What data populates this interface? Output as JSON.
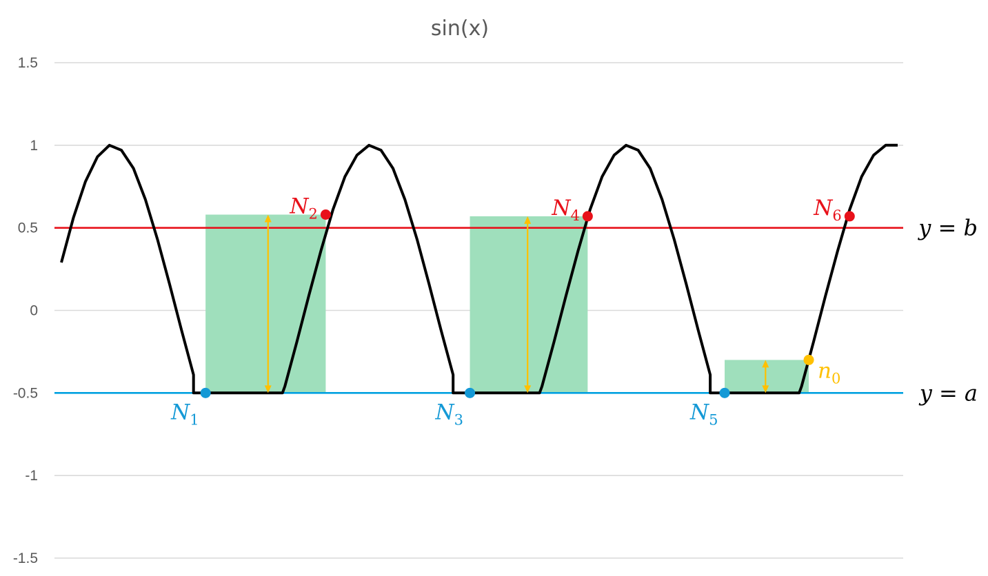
{
  "chart_data": {
    "type": "line",
    "title": "sin(x)",
    "xlabel": "",
    "ylabel": "",
    "ylim": [
      -1.5,
      1.5
    ],
    "y_ticks": [
      1.5,
      1,
      0.5,
      0,
      -0.5,
      -1,
      -1.5
    ],
    "y_tick_labels": [
      "1.5",
      "1",
      "0.5",
      "0",
      "-0.5",
      "-1",
      "-1.5"
    ],
    "grid": true,
    "legend": "none",
    "x_range": [
      0,
      18.35
    ],
    "series": [
      {
        "color": "#000000",
        "points": [
          [
            0.0,
            0.29
          ],
          [
            0.25,
            0.56
          ],
          [
            0.5,
            0.78
          ],
          [
            0.75,
            0.93
          ],
          [
            1.0,
            1.0
          ],
          [
            1.25,
            0.97
          ],
          [
            1.5,
            0.86
          ],
          [
            1.75,
            0.67
          ],
          [
            2.0,
            0.43
          ],
          [
            2.25,
            0.16
          ],
          [
            2.5,
            -0.12
          ],
          [
            2.75,
            -0.39
          ],
          [
            2.75,
            -0.5
          ],
          [
            4.6,
            -0.5
          ],
          [
            4.65,
            -0.46
          ],
          [
            4.9,
            -0.19
          ],
          [
            5.15,
            0.09
          ],
          [
            5.4,
            0.36
          ],
          [
            5.65,
            0.61
          ],
          [
            5.9,
            0.81
          ],
          [
            6.15,
            0.94
          ],
          [
            6.4,
            1.0
          ],
          [
            6.65,
            0.97
          ],
          [
            6.9,
            0.86
          ],
          [
            7.15,
            0.67
          ],
          [
            7.4,
            0.43
          ],
          [
            7.65,
            0.16
          ],
          [
            7.9,
            -0.12
          ],
          [
            8.15,
            -0.39
          ],
          [
            8.15,
            -0.5
          ],
          [
            9.95,
            -0.5
          ],
          [
            10.0,
            -0.46
          ],
          [
            10.25,
            -0.19
          ],
          [
            10.5,
            0.09
          ],
          [
            10.75,
            0.36
          ],
          [
            11.0,
            0.61
          ],
          [
            11.25,
            0.81
          ],
          [
            11.5,
            0.94
          ],
          [
            11.75,
            1.0
          ],
          [
            12.0,
            0.97
          ],
          [
            12.25,
            0.86
          ],
          [
            12.5,
            0.67
          ],
          [
            12.75,
            0.43
          ],
          [
            13.0,
            0.16
          ],
          [
            13.25,
            -0.12
          ],
          [
            13.5,
            -0.39
          ],
          [
            13.5,
            -0.5
          ],
          [
            15.35,
            -0.5
          ],
          [
            15.4,
            -0.46
          ],
          [
            15.65,
            -0.19
          ],
          [
            15.9,
            0.09
          ],
          [
            16.15,
            0.36
          ],
          [
            16.4,
            0.61
          ],
          [
            16.65,
            0.81
          ],
          [
            16.9,
            0.94
          ],
          [
            17.15,
            1.0
          ],
          [
            17.4,
            1.0
          ]
        ]
      }
    ],
    "reference_lines": [
      {
        "y": 0.5,
        "color": "#e8111a",
        "label": "y = b"
      },
      {
        "y": -0.5,
        "color": "#00a0e0",
        "label": "y = a"
      }
    ],
    "shaded_regions": [
      {
        "x0": 3.0,
        "x1": 5.5,
        "y0": -0.5,
        "y1": 0.58,
        "color": "#9fdfbc"
      },
      {
        "x0": 8.5,
        "x1": 10.95,
        "y0": -0.5,
        "y1": 0.57,
        "color": "#9fdfbc"
      },
      {
        "x0": 13.8,
        "x1": 15.55,
        "y0": -0.5,
        "y1": -0.3,
        "color": "#9fdfbc"
      }
    ],
    "double_arrows": [
      {
        "x": 4.3,
        "y0": -0.5,
        "y1": 0.58,
        "color": "#ffc000"
      },
      {
        "x": 9.7,
        "y0": -0.5,
        "y1": 0.57,
        "color": "#ffc000"
      },
      {
        "x": 14.65,
        "y0": -0.5,
        "y1": -0.3,
        "color": "#ffc000"
      }
    ],
    "points": [
      {
        "base": "N",
        "sub": "1",
        "x": 3.0,
        "y": -0.5,
        "color": "#1499d6",
        "label_pos": "below-left"
      },
      {
        "base": "N",
        "sub": "2",
        "x": 5.5,
        "y": 0.58,
        "color": "#e8111a",
        "label_pos": "above-left"
      },
      {
        "base": "N",
        "sub": "3",
        "x": 8.5,
        "y": -0.5,
        "color": "#1499d6",
        "label_pos": "below-left"
      },
      {
        "base": "N",
        "sub": "4",
        "x": 10.95,
        "y": 0.57,
        "color": "#e8111a",
        "label_pos": "above-left"
      },
      {
        "base": "N",
        "sub": "5",
        "x": 13.8,
        "y": -0.5,
        "color": "#1499d6",
        "label_pos": "below-left"
      },
      {
        "base": "N",
        "sub": "6",
        "x": 16.4,
        "y": 0.57,
        "color": "#e8111a",
        "label_pos": "above-left"
      },
      {
        "base": "n",
        "sub": "0",
        "x": 15.55,
        "y": -0.3,
        "color": "#ffc000",
        "label_pos": "right"
      }
    ],
    "colors": {
      "curve": "#000000",
      "grid": "#d9d9d9",
      "tick_text": "#595959"
    }
  }
}
